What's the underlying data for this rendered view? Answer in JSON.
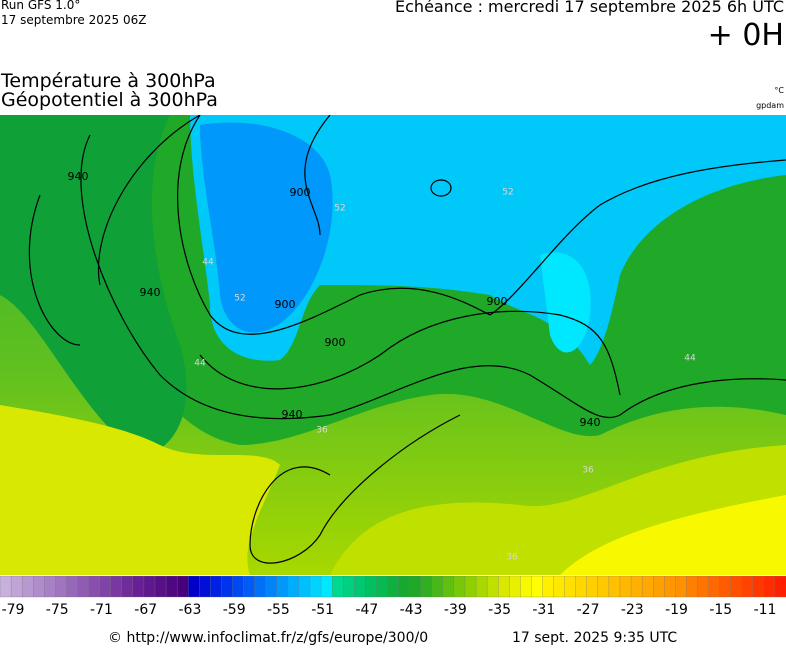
{
  "header": {
    "run": "Run GFS 1.0°",
    "run_date": "17 septembre 2025 06Z",
    "valid_time": "Echéance : mercredi 17 septembre 2025 6h UTC",
    "lead": "+ 0H",
    "title_temperature": "Température à 300hPa",
    "title_geopotential": "Géopotentiel à 300hPa",
    "unit_temperature": "°C",
    "unit_geopotential": "gpdam"
  },
  "map": {
    "contour_labels": [
      "900",
      "900",
      "900",
      "900",
      "940",
      "940",
      "940",
      "940",
      "52",
      "52",
      "52",
      "44",
      "44",
      "44",
      "36",
      "36",
      "36"
    ]
  },
  "colorbar": {
    "ticks": [
      -79,
      -75,
      -71,
      -67,
      -63,
      -59,
      -55,
      -51,
      -47,
      -43,
      -39,
      -35,
      -31,
      -27,
      -23,
      -19,
      -15,
      -11
    ],
    "colors": [
      "#c8b0dc",
      "#c0a4d6",
      "#b898d0",
      "#b08cca",
      "#a880c4",
      "#a074be",
      "#9868b8",
      "#905cb2",
      "#8850ac",
      "#8044a6",
      "#7838a0",
      "#702c9a",
      "#682094",
      "#60188e",
      "#581088",
      "#500882",
      "#48007c",
      "#0000c8",
      "#0010d8",
      "#0020e4",
      "#0034ec",
      "#0048f0",
      "#005cf4",
      "#0070f6",
      "#0084f8",
      "#0098fa",
      "#00acfc",
      "#00c0fc",
      "#00d4fe",
      "#00e8ff",
      "#00d890",
      "#00d080",
      "#00c870",
      "#00c060",
      "#08b850",
      "#10b040",
      "#18a830",
      "#20a828",
      "#30b020",
      "#48b818",
      "#60c010",
      "#78c808",
      "#90d000",
      "#a8d800",
      "#c0e000",
      "#d8e800",
      "#e8f000",
      "#f8f800",
      "#ffff00",
      "#fff000",
      "#ffe800",
      "#ffe000",
      "#ffd800",
      "#ffd000",
      "#ffc800",
      "#ffc000",
      "#ffb800",
      "#ffb000",
      "#ffa800",
      "#ffa000",
      "#ff9800",
      "#ff9000",
      "#ff8000",
      "#ff7400",
      "#ff6800",
      "#ff5c00",
      "#ff5000",
      "#ff4400",
      "#ff3800",
      "#ff2c00",
      "#ff2000"
    ]
  },
  "footer": {
    "url": "© http://www.infoclimat.fr/z/gfs/europe/300/0",
    "generated": "17 sept. 2025  9:35 UTC"
  }
}
